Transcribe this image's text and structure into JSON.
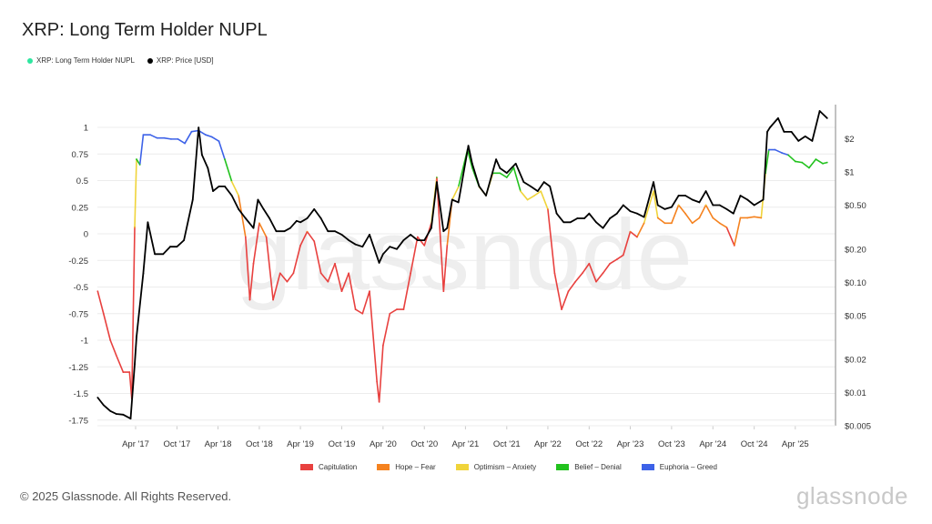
{
  "title": "XRP: Long Term Holder NUPL",
  "top_legend": [
    {
      "label": "XRP: Long Term Holder NUPL",
      "color": "#2ee6a0"
    },
    {
      "label": "XRP: Price [USD]",
      "color": "#000000"
    }
  ],
  "bottom_legend": [
    {
      "label": "Capitulation",
      "color": "#e8413f"
    },
    {
      "label": "Hope – Fear",
      "color": "#f5821f"
    },
    {
      "label": "Optimism – Anxiety",
      "color": "#f0d43a"
    },
    {
      "label": "Belief – Denial",
      "color": "#22c21e"
    },
    {
      "label": "Euphoria – Greed",
      "color": "#3d62e8"
    }
  ],
  "footer": "© 2025 Glassnode. All Rights Reserved.",
  "brand": "glassnode",
  "watermark": "glassnode",
  "chart_data": {
    "type": "line",
    "xlim": [
      "2016-10-15",
      "2025-08-20"
    ],
    "x_ticks": [
      "Apr '17",
      "Oct '17",
      "Apr '18",
      "Oct '18",
      "Apr '19",
      "Oct '19",
      "Apr '20",
      "Oct '20",
      "Apr '21",
      "Oct '21",
      "Apr '22",
      "Oct '22",
      "Apr '23",
      "Oct '23",
      "Apr '24",
      "Oct '24",
      "Apr '25"
    ],
    "x_tick_dates": [
      "2017-04-01",
      "2017-10-01",
      "2018-04-01",
      "2018-10-01",
      "2019-04-01",
      "2019-10-01",
      "2020-04-01",
      "2020-10-01",
      "2021-04-01",
      "2021-10-01",
      "2022-04-01",
      "2022-10-01",
      "2023-04-01",
      "2023-10-01",
      "2024-04-01",
      "2024-10-01",
      "2025-04-01"
    ],
    "left_axis": {
      "ticks": [
        1,
        0.75,
        0.5,
        0.25,
        0,
        -0.25,
        -0.5,
        -0.75,
        -1,
        -1.25,
        -1.5,
        -1.75
      ],
      "labels": [
        "1",
        "0.75",
        "0.5",
        "0.25",
        "0",
        "-0.25",
        "-0.5",
        "-0.75",
        "-1",
        "-1.25",
        "-1.5",
        "-1.75"
      ],
      "ylim": [
        -1.75,
        1
      ]
    },
    "right_axis": {
      "scale": "log",
      "ticks": [
        2,
        1,
        0.5,
        0.2,
        0.1,
        0.05,
        0.02,
        0.01,
        0.005
      ],
      "labels": [
        "$2",
        "$1",
        "$0.50",
        "$0.20",
        "$0.10",
        "$0.05",
        "$0.02",
        "$0.01",
        "$0.005"
      ],
      "ylim": [
        0.005,
        4.2
      ]
    },
    "grid": true,
    "zones": [
      {
        "name": "Capitulation",
        "min": -10,
        "max": 0,
        "color": "#e8413f"
      },
      {
        "name": "Hope – Fear",
        "min": 0,
        "max": 0.25,
        "color": "#f5821f"
      },
      {
        "name": "Optimism – Anxiety",
        "min": 0.25,
        "max": 0.5,
        "color": "#f0d43a"
      },
      {
        "name": "Belief – Denial",
        "min": 0.5,
        "max": 0.75,
        "color": "#22c21e"
      },
      {
        "name": "Euphoria – Greed",
        "min": 0.75,
        "max": 10,
        "color": "#3d62e8"
      }
    ],
    "series": [
      {
        "name": "XRP: Long Term Holder NUPL",
        "axis": "left",
        "points": [
          [
            "2016-10-15",
            -0.54
          ],
          [
            "2016-11-10",
            -0.75
          ],
          [
            "2016-12-10",
            -1.0
          ],
          [
            "2017-01-05",
            -1.14
          ],
          [
            "2017-02-05",
            -1.3
          ],
          [
            "2017-03-05",
            -1.3
          ],
          [
            "2017-03-15",
            -1.55
          ],
          [
            "2017-03-28",
            0.06
          ],
          [
            "2017-04-05",
            0.7
          ],
          [
            "2017-04-20",
            0.65
          ],
          [
            "2017-05-05",
            0.93
          ],
          [
            "2017-06-05",
            0.93
          ],
          [
            "2017-07-05",
            0.9
          ],
          [
            "2017-08-05",
            0.9
          ],
          [
            "2017-09-05",
            0.89
          ],
          [
            "2017-10-05",
            0.89
          ],
          [
            "2017-11-05",
            0.85
          ],
          [
            "2017-12-05",
            0.96
          ],
          [
            "2018-01-05",
            0.97
          ],
          [
            "2018-02-05",
            0.93
          ],
          [
            "2018-03-05",
            0.91
          ],
          [
            "2018-04-05",
            0.87
          ],
          [
            "2018-05-01",
            0.7
          ],
          [
            "2018-06-01",
            0.49
          ],
          [
            "2018-07-01",
            0.36
          ],
          [
            "2018-08-01",
            -0.03
          ],
          [
            "2018-08-20",
            -0.62
          ],
          [
            "2018-09-05",
            -0.28
          ],
          [
            "2018-10-01",
            0.1
          ],
          [
            "2018-11-01",
            -0.03
          ],
          [
            "2018-12-01",
            -0.62
          ],
          [
            "2019-01-01",
            -0.37
          ],
          [
            "2019-02-01",
            -0.45
          ],
          [
            "2019-03-01",
            -0.37
          ],
          [
            "2019-04-01",
            -0.11
          ],
          [
            "2019-05-01",
            0.02
          ],
          [
            "2019-06-01",
            -0.07
          ],
          [
            "2019-07-01",
            -0.37
          ],
          [
            "2019-08-01",
            -0.45
          ],
          [
            "2019-09-01",
            -0.28
          ],
          [
            "2019-10-01",
            -0.54
          ],
          [
            "2019-11-01",
            -0.37
          ],
          [
            "2019-12-01",
            -0.71
          ],
          [
            "2020-01-01",
            -0.75
          ],
          [
            "2020-02-01",
            -0.54
          ],
          [
            "2020-03-05",
            -1.39
          ],
          [
            "2020-03-15",
            -1.58
          ],
          [
            "2020-04-01",
            -1.05
          ],
          [
            "2020-05-01",
            -0.75
          ],
          [
            "2020-06-01",
            -0.71
          ],
          [
            "2020-07-01",
            -0.71
          ],
          [
            "2020-08-01",
            -0.37
          ],
          [
            "2020-09-01",
            -0.03
          ],
          [
            "2020-10-01",
            -0.11
          ],
          [
            "2020-11-01",
            0.1
          ],
          [
            "2020-11-25",
            0.53
          ],
          [
            "2020-12-25",
            -0.54
          ],
          [
            "2021-01-10",
            -0.11
          ],
          [
            "2021-02-01",
            0.32
          ],
          [
            "2021-03-01",
            0.44
          ],
          [
            "2021-04-10",
            0.79
          ],
          [
            "2021-05-01",
            0.62
          ],
          [
            "2021-06-01",
            0.44
          ],
          [
            "2021-07-01",
            0.36
          ],
          [
            "2021-08-01",
            0.57
          ],
          [
            "2021-09-01",
            0.57
          ],
          [
            "2021-10-01",
            0.53
          ],
          [
            "2021-11-01",
            0.62
          ],
          [
            "2021-12-01",
            0.4
          ],
          [
            "2022-01-01",
            0.32
          ],
          [
            "2022-02-01",
            0.36
          ],
          [
            "2022-03-01",
            0.4
          ],
          [
            "2022-04-01",
            0.23
          ],
          [
            "2022-05-01",
            -0.37
          ],
          [
            "2022-06-01",
            -0.71
          ],
          [
            "2022-07-01",
            -0.54
          ],
          [
            "2022-08-01",
            -0.45
          ],
          [
            "2022-09-01",
            -0.37
          ],
          [
            "2022-10-01",
            -0.28
          ],
          [
            "2022-11-01",
            -0.45
          ],
          [
            "2022-12-01",
            -0.37
          ],
          [
            "2023-01-01",
            -0.28
          ],
          [
            "2023-02-01",
            -0.24
          ],
          [
            "2023-03-01",
            -0.2
          ],
          [
            "2023-04-01",
            0.02
          ],
          [
            "2023-05-01",
            -0.03
          ],
          [
            "2023-06-01",
            0.1
          ],
          [
            "2023-07-13",
            0.4
          ],
          [
            "2023-08-01",
            0.15
          ],
          [
            "2023-09-01",
            0.1
          ],
          [
            "2023-10-01",
            0.1
          ],
          [
            "2023-11-01",
            0.27
          ],
          [
            "2023-12-01",
            0.19
          ],
          [
            "2024-01-01",
            0.1
          ],
          [
            "2024-02-01",
            0.15
          ],
          [
            "2024-03-01",
            0.27
          ],
          [
            "2024-04-01",
            0.15
          ],
          [
            "2024-05-01",
            0.1
          ],
          [
            "2024-06-01",
            0.06
          ],
          [
            "2024-07-05",
            -0.11
          ],
          [
            "2024-08-01",
            0.15
          ],
          [
            "2024-09-01",
            0.15
          ],
          [
            "2024-10-01",
            0.16
          ],
          [
            "2024-11-01",
            0.15
          ],
          [
            "2024-11-20",
            0.57
          ],
          [
            "2024-12-05",
            0.79
          ],
          [
            "2025-01-01",
            0.79
          ],
          [
            "2025-02-01",
            0.76
          ],
          [
            "2025-03-01",
            0.74
          ],
          [
            "2025-04-01",
            0.68
          ],
          [
            "2025-05-01",
            0.67
          ],
          [
            "2025-06-01",
            0.62
          ],
          [
            "2025-07-01",
            0.7
          ],
          [
            "2025-08-01",
            0.66
          ],
          [
            "2025-08-20",
            0.67
          ]
        ]
      },
      {
        "name": "XRP: Price [USD]",
        "axis": "right",
        "points": [
          [
            "2016-10-15",
            0.009
          ],
          [
            "2016-11-10",
            0.0077
          ],
          [
            "2016-12-10",
            0.0068
          ],
          [
            "2017-01-05",
            0.0064
          ],
          [
            "2017-02-05",
            0.0063
          ],
          [
            "2017-03-10",
            0.0058
          ],
          [
            "2017-03-28",
            0.018
          ],
          [
            "2017-04-05",
            0.032
          ],
          [
            "2017-05-05",
            0.12
          ],
          [
            "2017-05-25",
            0.35
          ],
          [
            "2017-06-25",
            0.18
          ],
          [
            "2017-08-01",
            0.18
          ],
          [
            "2017-09-01",
            0.21
          ],
          [
            "2017-10-01",
            0.21
          ],
          [
            "2017-11-01",
            0.24
          ],
          [
            "2017-12-10",
            0.56
          ],
          [
            "2018-01-05",
            2.53
          ],
          [
            "2018-01-20",
            1.43
          ],
          [
            "2018-02-15",
            1.08
          ],
          [
            "2018-03-10",
            0.67
          ],
          [
            "2018-04-05",
            0.74
          ],
          [
            "2018-05-01",
            0.74
          ],
          [
            "2018-06-01",
            0.61
          ],
          [
            "2018-07-01",
            0.46
          ],
          [
            "2018-08-01",
            0.38
          ],
          [
            "2018-09-05",
            0.31
          ],
          [
            "2018-09-25",
            0.56
          ],
          [
            "2018-10-20",
            0.46
          ],
          [
            "2018-11-15",
            0.38
          ],
          [
            "2018-12-15",
            0.29
          ],
          [
            "2019-01-20",
            0.29
          ],
          [
            "2019-02-15",
            0.31
          ],
          [
            "2019-03-15",
            0.36
          ],
          [
            "2019-04-01",
            0.35
          ],
          [
            "2019-05-01",
            0.38
          ],
          [
            "2019-06-01",
            0.46
          ],
          [
            "2019-07-01",
            0.38
          ],
          [
            "2019-08-01",
            0.29
          ],
          [
            "2019-09-01",
            0.29
          ],
          [
            "2019-10-01",
            0.27
          ],
          [
            "2019-11-01",
            0.24
          ],
          [
            "2019-12-01",
            0.22
          ],
          [
            "2020-01-01",
            0.21
          ],
          [
            "2020-02-01",
            0.27
          ],
          [
            "2020-03-15",
            0.15
          ],
          [
            "2020-04-01",
            0.18
          ],
          [
            "2020-05-01",
            0.21
          ],
          [
            "2020-06-01",
            0.2
          ],
          [
            "2020-07-01",
            0.24
          ],
          [
            "2020-08-01",
            0.27
          ],
          [
            "2020-09-01",
            0.24
          ],
          [
            "2020-10-01",
            0.24
          ],
          [
            "2020-11-01",
            0.31
          ],
          [
            "2020-11-25",
            0.81
          ],
          [
            "2020-12-25",
            0.29
          ],
          [
            "2021-01-10",
            0.31
          ],
          [
            "2021-02-01",
            0.56
          ],
          [
            "2021-03-01",
            0.53
          ],
          [
            "2021-04-14",
            1.73
          ],
          [
            "2021-05-01",
            1.19
          ],
          [
            "2021-06-01",
            0.74
          ],
          [
            "2021-07-01",
            0.61
          ],
          [
            "2021-08-15",
            1.3
          ],
          [
            "2021-09-01",
            1.08
          ],
          [
            "2021-10-01",
            0.98
          ],
          [
            "2021-11-10",
            1.19
          ],
          [
            "2021-12-15",
            0.81
          ],
          [
            "2022-01-15",
            0.74
          ],
          [
            "2022-02-15",
            0.67
          ],
          [
            "2022-03-15",
            0.81
          ],
          [
            "2022-04-10",
            0.74
          ],
          [
            "2022-05-10",
            0.42
          ],
          [
            "2022-06-10",
            0.35
          ],
          [
            "2022-07-10",
            0.35
          ],
          [
            "2022-08-10",
            0.38
          ],
          [
            "2022-09-10",
            0.38
          ],
          [
            "2022-10-01",
            0.42
          ],
          [
            "2022-11-01",
            0.35
          ],
          [
            "2022-12-01",
            0.31
          ],
          [
            "2023-01-01",
            0.38
          ],
          [
            "2023-02-01",
            0.42
          ],
          [
            "2023-03-01",
            0.5
          ],
          [
            "2023-04-01",
            0.44
          ],
          [
            "2023-05-01",
            0.42
          ],
          [
            "2023-06-01",
            0.39
          ],
          [
            "2023-07-13",
            0.81
          ],
          [
            "2023-08-01",
            0.5
          ],
          [
            "2023-09-01",
            0.46
          ],
          [
            "2023-10-01",
            0.48
          ],
          [
            "2023-11-01",
            0.61
          ],
          [
            "2023-12-01",
            0.61
          ],
          [
            "2024-01-01",
            0.56
          ],
          [
            "2024-02-01",
            0.53
          ],
          [
            "2024-03-01",
            0.67
          ],
          [
            "2024-04-01",
            0.5
          ],
          [
            "2024-05-01",
            0.5
          ],
          [
            "2024-06-01",
            0.46
          ],
          [
            "2024-07-01",
            0.42
          ],
          [
            "2024-08-01",
            0.61
          ],
          [
            "2024-09-01",
            0.56
          ],
          [
            "2024-10-01",
            0.5
          ],
          [
            "2024-11-10",
            0.56
          ],
          [
            "2024-11-28",
            2.31
          ],
          [
            "2024-12-10",
            2.53
          ],
          [
            "2025-01-15",
            3.07
          ],
          [
            "2025-02-10",
            2.31
          ],
          [
            "2025-03-15",
            2.31
          ],
          [
            "2025-04-15",
            1.91
          ],
          [
            "2025-05-15",
            2.1
          ],
          [
            "2025-06-15",
            1.91
          ],
          [
            "2025-07-18",
            3.57
          ],
          [
            "2025-08-20",
            3.07
          ]
        ]
      }
    ]
  }
}
